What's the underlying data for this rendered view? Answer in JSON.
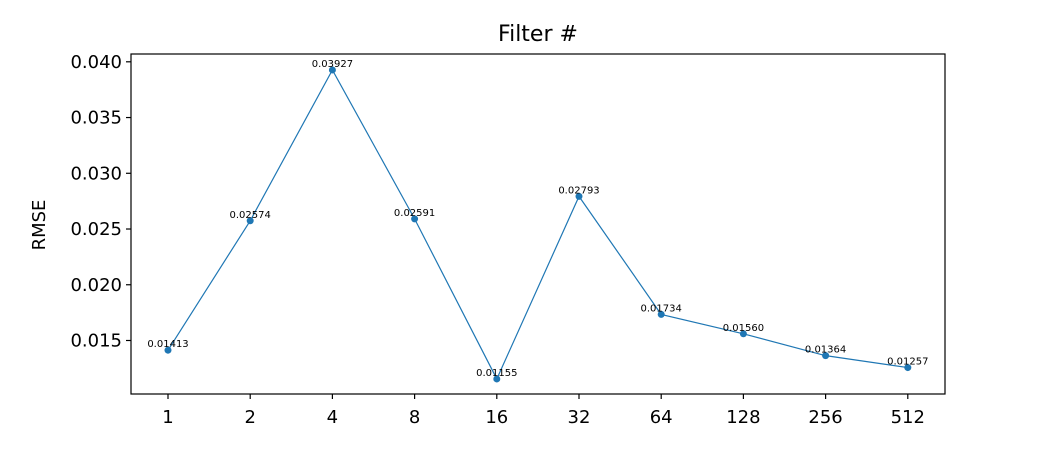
{
  "chart_data": {
    "type": "line",
    "title": "Filter #",
    "xlabel": "",
    "ylabel": "RMSE",
    "categories": [
      "1",
      "2",
      "4",
      "8",
      "16",
      "32",
      "64",
      "128",
      "256",
      "512"
    ],
    "values": [
      0.01413,
      0.02574,
      0.03927,
      0.02591,
      0.01155,
      0.02793,
      0.01734,
      0.0156,
      0.01364,
      0.01257
    ],
    "data_labels": [
      "0.01413",
      "0.02574",
      "0.03927",
      "0.02591",
      "0.01155",
      "0.02793",
      "0.01734",
      "0.01560",
      "0.01364",
      "0.01257"
    ],
    "yticks": [
      0.015,
      0.02,
      0.025,
      0.03,
      0.035,
      0.04
    ],
    "ytick_labels": [
      "0.015",
      "0.020",
      "0.025",
      "0.030",
      "0.035",
      "0.040"
    ],
    "ylim": [
      0.0102,
      0.0407
    ],
    "grid": false,
    "color": "#1f77b4"
  }
}
